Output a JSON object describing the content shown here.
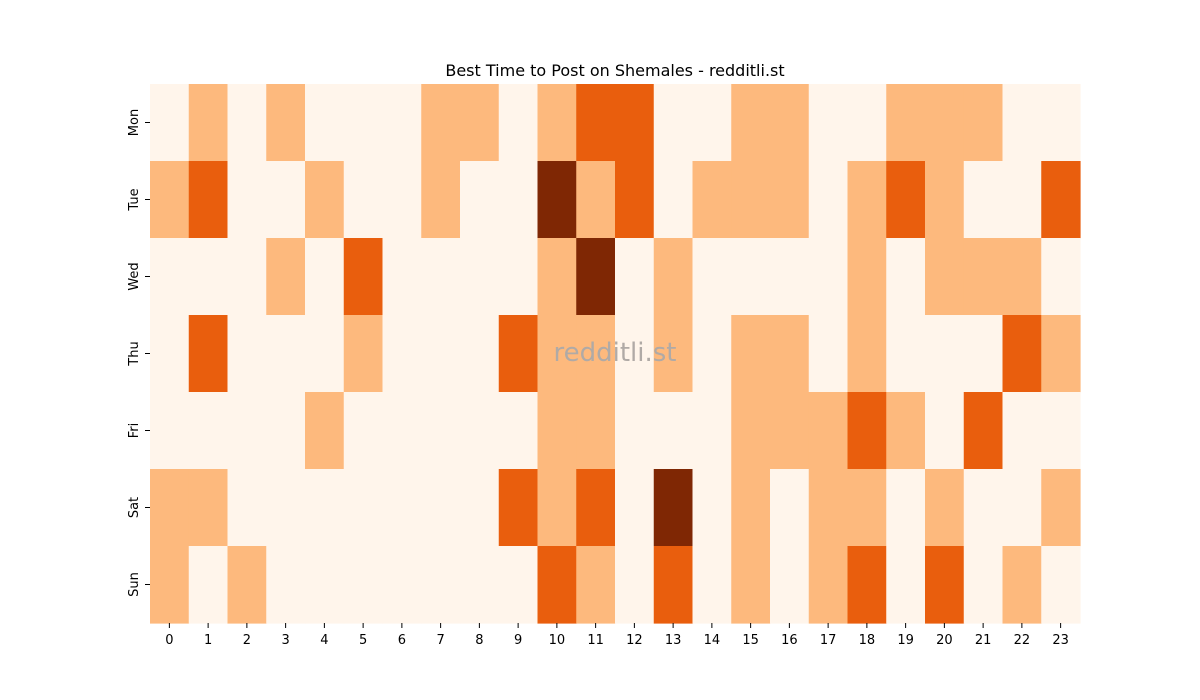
{
  "chart_data": {
    "type": "heatmap",
    "title": "Best Time to Post on Shemales - redditli.st",
    "watermark": "redditli.st",
    "xlabel": "",
    "ylabel": "",
    "x_labels": [
      "0",
      "1",
      "2",
      "3",
      "4",
      "5",
      "6",
      "7",
      "8",
      "9",
      "10",
      "11",
      "12",
      "13",
      "14",
      "15",
      "16",
      "17",
      "18",
      "19",
      "20",
      "21",
      "22",
      "23"
    ],
    "y_labels": [
      "Mon",
      "Tue",
      "Wed",
      "Thu",
      "Fri",
      "Sat",
      "Sun"
    ],
    "levels": [
      0,
      1,
      2,
      3
    ],
    "colors": [
      "#fff5eb",
      "#fdb97d",
      "#e95e0d",
      "#7f2704"
    ],
    "colorbar": false,
    "values": [
      [
        0,
        1,
        0,
        1,
        0,
        0,
        0,
        1,
        1,
        0,
        1,
        2,
        2,
        0,
        0,
        1,
        1,
        0,
        0,
        1,
        1,
        1,
        0,
        0
      ],
      [
        1,
        2,
        0,
        0,
        1,
        0,
        0,
        1,
        0,
        0,
        3,
        1,
        2,
        0,
        1,
        1,
        1,
        0,
        1,
        2,
        1,
        0,
        0,
        2
      ],
      [
        0,
        0,
        0,
        1,
        0,
        2,
        0,
        0,
        0,
        0,
        1,
        3,
        0,
        1,
        0,
        0,
        0,
        0,
        1,
        0,
        1,
        1,
        1,
        0
      ],
      [
        0,
        2,
        0,
        0,
        0,
        1,
        0,
        0,
        0,
        2,
        1,
        1,
        0,
        1,
        0,
        1,
        1,
        0,
        1,
        0,
        0,
        0,
        2,
        1
      ],
      [
        0,
        0,
        0,
        0,
        1,
        0,
        0,
        0,
        0,
        0,
        1,
        1,
        0,
        0,
        0,
        1,
        1,
        1,
        2,
        1,
        0,
        2,
        0,
        0
      ],
      [
        1,
        1,
        0,
        0,
        0,
        0,
        0,
        0,
        0,
        2,
        1,
        2,
        0,
        3,
        0,
        1,
        0,
        1,
        1,
        0,
        1,
        0,
        0,
        1
      ],
      [
        1,
        0,
        1,
        0,
        0,
        0,
        0,
        0,
        0,
        0,
        2,
        1,
        0,
        2,
        0,
        1,
        0,
        1,
        2,
        0,
        2,
        0,
        1,
        0
      ]
    ]
  }
}
